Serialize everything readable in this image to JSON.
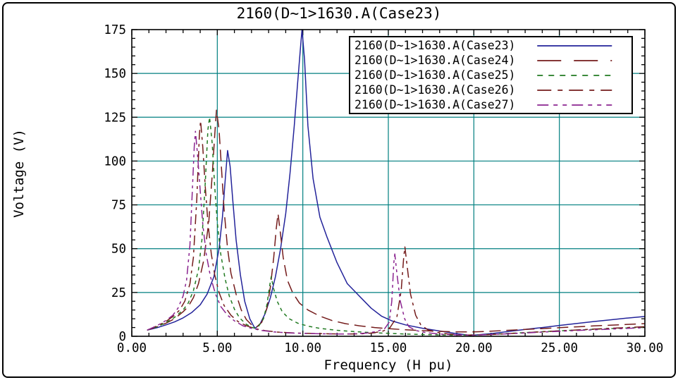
{
  "chart_data": {
    "type": "line",
    "title": "2160(D~1>1630.A(Case23)",
    "xlabel": "Frequency (H pu)",
    "ylabel": "Voltage (V)",
    "xlim": [
      0,
      30
    ],
    "ylim": [
      0,
      175
    ],
    "x_major_ticks": [
      0,
      5,
      10,
      15,
      20,
      25,
      30
    ],
    "x_tick_labels": [
      "0.00",
      "5.00",
      "10.00",
      "15.00",
      "20.00",
      "25.00",
      "30.00"
    ],
    "x_minor_step": 1,
    "y_major_ticks": [
      0,
      25,
      50,
      75,
      100,
      125,
      150,
      175
    ],
    "y_tick_labels": [
      "0",
      "25",
      "50",
      "75",
      "100",
      "125",
      "150",
      "175"
    ],
    "y_minor_step": 5,
    "grid": true,
    "grid_color": "#007f80",
    "frame_color": "#000000",
    "legend_position": "top-right",
    "series": [
      {
        "name": "2160(D~1>1630.A(Case23)",
        "color": "#23239a",
        "dash": "",
        "legend_dash": "",
        "peaks_note": "peaks ~106 V at 5.6 pu and 175 V at 10.0 pu",
        "points": [
          [
            0.9,
            3.5
          ],
          [
            1.5,
            5
          ],
          [
            2,
            6.5
          ],
          [
            2.5,
            8.2
          ],
          [
            3,
            10.5
          ],
          [
            3.5,
            13.5
          ],
          [
            4,
            18
          ],
          [
            4.4,
            24
          ],
          [
            4.8,
            34
          ],
          [
            5.1,
            50
          ],
          [
            5.3,
            68
          ],
          [
            5.45,
            88
          ],
          [
            5.6,
            106
          ],
          [
            5.75,
            97
          ],
          [
            5.9,
            78
          ],
          [
            6.1,
            55
          ],
          [
            6.35,
            35
          ],
          [
            6.6,
            20
          ],
          [
            6.9,
            10
          ],
          [
            7.2,
            4.5
          ],
          [
            7.5,
            7
          ],
          [
            7.8,
            13
          ],
          [
            8.1,
            22
          ],
          [
            8.4,
            34
          ],
          [
            8.7,
            50
          ],
          [
            9,
            70
          ],
          [
            9.25,
            93
          ],
          [
            9.5,
            120
          ],
          [
            9.7,
            145
          ],
          [
            9.85,
            163
          ],
          [
            9.95,
            175
          ],
          [
            10.1,
            158
          ],
          [
            10.3,
            120
          ],
          [
            10.6,
            90
          ],
          [
            11,
            68
          ],
          [
            11.4,
            57
          ],
          [
            12,
            42
          ],
          [
            12.6,
            30
          ],
          [
            13.3,
            23
          ],
          [
            14,
            16
          ],
          [
            14.6,
            11.5
          ],
          [
            15.2,
            8.8
          ],
          [
            16,
            6.5
          ],
          [
            17,
            4.6
          ],
          [
            18,
            3
          ],
          [
            19,
            1.5
          ],
          [
            19.8,
            0.5
          ],
          [
            21,
            1.5
          ],
          [
            22,
            2.7
          ],
          [
            23,
            3.9
          ],
          [
            24,
            5
          ],
          [
            25,
            6.2
          ],
          [
            26,
            7.3
          ],
          [
            27,
            8.4
          ],
          [
            28,
            9.4
          ],
          [
            29,
            10.4
          ],
          [
            30,
            11.3
          ]
        ]
      },
      {
        "name": "2160(D~1>1630.A(Case24)",
        "color": "#741b1b",
        "dash": "16 8",
        "legend_dash": "34 18",
        "peaks_note": "peaks ~129 V at 5.0 pu and ~70 V at 8.55 pu",
        "points": [
          [
            0.9,
            3.5
          ],
          [
            1.5,
            5.5
          ],
          [
            2,
            7.5
          ],
          [
            2.5,
            10
          ],
          [
            3,
            14
          ],
          [
            3.3,
            17
          ],
          [
            3.6,
            22
          ],
          [
            3.9,
            30
          ],
          [
            4.2,
            43
          ],
          [
            4.5,
            65
          ],
          [
            4.7,
            92
          ],
          [
            4.85,
            115
          ],
          [
            4.95,
            129
          ],
          [
            5.1,
            118
          ],
          [
            5.25,
            95
          ],
          [
            5.4,
            72
          ],
          [
            5.6,
            50
          ],
          [
            5.8,
            36
          ],
          [
            6.1,
            24
          ],
          [
            6.4,
            15
          ],
          [
            6.7,
            9.5
          ],
          [
            7,
            6.5
          ],
          [
            7.3,
            5.2
          ],
          [
            7.6,
            8
          ],
          [
            7.9,
            16
          ],
          [
            8.1,
            28
          ],
          [
            8.3,
            45
          ],
          [
            8.45,
            62
          ],
          [
            8.55,
            70
          ],
          [
            8.7,
            58
          ],
          [
            8.85,
            45
          ],
          [
            9.1,
            32
          ],
          [
            9.4,
            25
          ],
          [
            9.8,
            19
          ],
          [
            10.3,
            15
          ],
          [
            11,
            11.5
          ],
          [
            11.7,
            9
          ],
          [
            12.5,
            7.2
          ],
          [
            13.3,
            6
          ],
          [
            14.2,
            5
          ],
          [
            15,
            4.4
          ],
          [
            16,
            3.7
          ],
          [
            17,
            3.2
          ],
          [
            18,
            2.8
          ],
          [
            19,
            2.5
          ],
          [
            20,
            2.5
          ],
          [
            21,
            2.9
          ],
          [
            22,
            3.4
          ],
          [
            23,
            3.9
          ],
          [
            24,
            4.4
          ],
          [
            25,
            4.9
          ],
          [
            26,
            5.4
          ],
          [
            27,
            5.9
          ],
          [
            28,
            6.3
          ],
          [
            29,
            6.8
          ],
          [
            30,
            7.2
          ]
        ]
      },
      {
        "name": "2160(D~1>1630.A(Case25)",
        "color": "#217a21",
        "dash": "5 5",
        "legend_dash": "8 8",
        "peaks_note": "peaks ~125 V at 4.55 pu and ~34 V at 8.15 pu",
        "points": [
          [
            0.9,
            3.5
          ],
          [
            1.5,
            5.5
          ],
          [
            2,
            7.8
          ],
          [
            2.5,
            10.8
          ],
          [
            3,
            15
          ],
          [
            3.3,
            19
          ],
          [
            3.6,
            26
          ],
          [
            3.9,
            38
          ],
          [
            4.1,
            55
          ],
          [
            4.3,
            88
          ],
          [
            4.45,
            118
          ],
          [
            4.55,
            125
          ],
          [
            4.7,
            110
          ],
          [
            4.85,
            85
          ],
          [
            5,
            65
          ],
          [
            5.2,
            47
          ],
          [
            5.45,
            33
          ],
          [
            5.7,
            23
          ],
          [
            6,
            15.5
          ],
          [
            6.3,
            10.5
          ],
          [
            6.7,
            6.8
          ],
          [
            7.1,
            4.8
          ],
          [
            7.4,
            5.5
          ],
          [
            7.7,
            10
          ],
          [
            7.9,
            18
          ],
          [
            8.05,
            28
          ],
          [
            8.15,
            34
          ],
          [
            8.3,
            27
          ],
          [
            8.5,
            20
          ],
          [
            8.8,
            14
          ],
          [
            9.2,
            10
          ],
          [
            9.7,
            7.5
          ],
          [
            10.3,
            5.8
          ],
          [
            11,
            4.5
          ],
          [
            12,
            3.4
          ],
          [
            13,
            2.7
          ],
          [
            14,
            2.1
          ],
          [
            15,
            1.7
          ],
          [
            16,
            1.3
          ],
          [
            17,
            1
          ],
          [
            18,
            0.8
          ],
          [
            19,
            0.7
          ],
          [
            20,
            0.8
          ],
          [
            21,
            1.1
          ],
          [
            22,
            1.6
          ],
          [
            23,
            2.1
          ],
          [
            24,
            2.6
          ],
          [
            25,
            3.1
          ],
          [
            26,
            3.6
          ],
          [
            27,
            4
          ],
          [
            28,
            4.4
          ],
          [
            29,
            4.8
          ],
          [
            30,
            5.2
          ]
        ]
      },
      {
        "name": "2160(D~1>1630.A(Case26)",
        "color": "#741b1b",
        "dash": "14 6 4 6",
        "legend_dash": "20 9 7 9",
        "peaks_note": "peaks ~123 V at 4.0 pu and ~51 V at 15.95 pu",
        "points": [
          [
            0.9,
            3.5
          ],
          [
            1.5,
            6
          ],
          [
            2,
            8.5
          ],
          [
            2.5,
            12
          ],
          [
            2.8,
            15
          ],
          [
            3.1,
            20
          ],
          [
            3.4,
            30
          ],
          [
            3.6,
            45
          ],
          [
            3.8,
            78
          ],
          [
            3.95,
            115
          ],
          [
            4.02,
            123
          ],
          [
            4.15,
            108
          ],
          [
            4.3,
            85
          ],
          [
            4.45,
            65
          ],
          [
            4.65,
            47
          ],
          [
            4.85,
            35
          ],
          [
            5.1,
            25
          ],
          [
            5.4,
            17.5
          ],
          [
            5.8,
            12
          ],
          [
            6.2,
            8.5
          ],
          [
            6.7,
            6
          ],
          [
            7.2,
            4.4
          ],
          [
            7.8,
            3.2
          ],
          [
            8.5,
            2.4
          ],
          [
            9.5,
            1.9
          ],
          [
            10.5,
            1.6
          ],
          [
            11.5,
            1.4
          ],
          [
            12.5,
            1.3
          ],
          [
            13.4,
            1.4
          ],
          [
            14.1,
            1.9
          ],
          [
            14.7,
            3
          ],
          [
            15.1,
            5
          ],
          [
            15.5,
            11
          ],
          [
            15.75,
            26
          ],
          [
            15.9,
            45
          ],
          [
            15.97,
            51
          ],
          [
            16.1,
            40
          ],
          [
            16.3,
            24
          ],
          [
            16.6,
            12
          ],
          [
            16.9,
            6.5
          ],
          [
            17.3,
            3.8
          ],
          [
            17.8,
            2.3
          ],
          [
            18.5,
            1.3
          ],
          [
            19.3,
            0.8
          ],
          [
            20,
            0.7
          ],
          [
            21,
            1
          ],
          [
            22,
            1.5
          ],
          [
            23,
            2
          ],
          [
            24,
            2.6
          ],
          [
            25,
            3.1
          ],
          [
            26,
            3.6
          ],
          [
            27,
            4.1
          ],
          [
            28,
            4.6
          ],
          [
            29,
            5
          ],
          [
            30,
            5.5
          ]
        ]
      },
      {
        "name": "2160(D~1>1630.A(Case27)",
        "color": "#8b2490",
        "dash": "12 5 4 5 4 5",
        "legend_dash": "16 7 6 7 6 7",
        "peaks_note": "peaks ~117 V at 3.7 pu and ~47 V at 15.4 pu",
        "points": [
          [
            0.9,
            3.5
          ],
          [
            1.5,
            6.2
          ],
          [
            2,
            9
          ],
          [
            2.4,
            12
          ],
          [
            2.7,
            16
          ],
          [
            3,
            23
          ],
          [
            3.2,
            32
          ],
          [
            3.4,
            52
          ],
          [
            3.55,
            85
          ],
          [
            3.65,
            108
          ],
          [
            3.72,
            117
          ],
          [
            3.85,
            103
          ],
          [
            4,
            83
          ],
          [
            4.15,
            64
          ],
          [
            4.35,
            47
          ],
          [
            4.6,
            34
          ],
          [
            4.9,
            24
          ],
          [
            5.2,
            17
          ],
          [
            5.6,
            12
          ],
          [
            6,
            8.8
          ],
          [
            6.5,
            6
          ],
          [
            7,
            4.5
          ],
          [
            7.6,
            3.3
          ],
          [
            8.3,
            2.5
          ],
          [
            9.2,
            1.9
          ],
          [
            10.2,
            1.6
          ],
          [
            11.2,
            1.4
          ],
          [
            12.2,
            1.3
          ],
          [
            13,
            1.4
          ],
          [
            13.7,
            1.8
          ],
          [
            14.3,
            2.7
          ],
          [
            14.8,
            4.5
          ],
          [
            15.05,
            8
          ],
          [
            15.2,
            20
          ],
          [
            15.32,
            42
          ],
          [
            15.38,
            47
          ],
          [
            15.5,
            36
          ],
          [
            15.7,
            20
          ],
          [
            15.95,
            10
          ],
          [
            16.2,
            5.5
          ],
          [
            16.6,
            3.3
          ],
          [
            17.2,
            2.1
          ],
          [
            18,
            1.3
          ],
          [
            19,
            0.8
          ],
          [
            20,
            0.7
          ],
          [
            21,
            1
          ],
          [
            22,
            1.4
          ],
          [
            23,
            1.9
          ],
          [
            24,
            2.4
          ],
          [
            25,
            2.8
          ],
          [
            26,
            3.3
          ],
          [
            27,
            3.7
          ],
          [
            28,
            4.1
          ],
          [
            29,
            4.5
          ],
          [
            30,
            4.9
          ]
        ]
      }
    ]
  }
}
